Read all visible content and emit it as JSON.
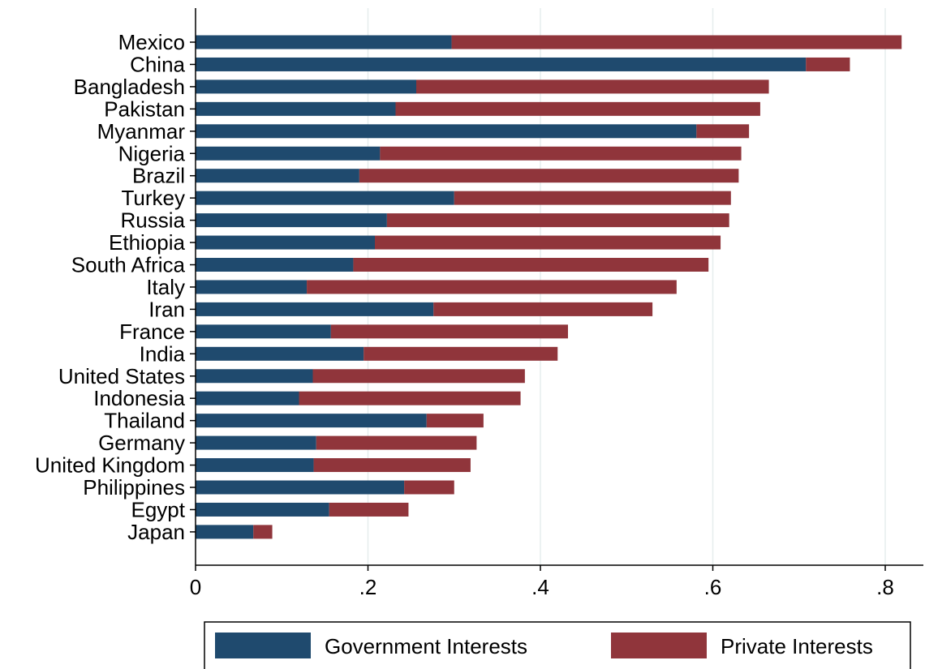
{
  "chart_data": {
    "type": "bar",
    "orientation": "horizontal",
    "stacked": true,
    "title": "",
    "xlabel": "",
    "ylabel": "",
    "xlim": [
      0,
      0.84
    ],
    "x_ticks": [
      0,
      0.2,
      0.4,
      0.6,
      0.8
    ],
    "x_tick_labels": [
      "0",
      ".2",
      ".4",
      ".6",
      ".8"
    ],
    "grid": "vertical",
    "legend_position": "bottom",
    "categories": [
      "Mexico",
      "China",
      "Bangladesh",
      "Pakistan",
      "Myanmar",
      "Nigeria",
      "Brazil",
      "Turkey",
      "Russia",
      "Ethiopia",
      "South Africa",
      "Italy",
      "Iran",
      "France",
      "India",
      "United States",
      "Indonesia",
      "Thailand",
      "Germany",
      "United Kingdom",
      "Philippines",
      "Egypt",
      "Japan"
    ],
    "series": [
      {
        "name": "Government Interests",
        "color": "#1f4a6e",
        "values": [
          0.297,
          0.708,
          0.256,
          0.232,
          0.581,
          0.214,
          0.19,
          0.3,
          0.222,
          0.208,
          0.183,
          0.129,
          0.276,
          0.157,
          0.195,
          0.136,
          0.12,
          0.268,
          0.14,
          0.137,
          0.242,
          0.155,
          0.067
        ]
      },
      {
        "name": "Private Interests",
        "color": "#90353b",
        "values": [
          0.522,
          0.051,
          0.409,
          0.423,
          0.061,
          0.419,
          0.44,
          0.321,
          0.397,
          0.401,
          0.412,
          0.429,
          0.254,
          0.275,
          0.225,
          0.246,
          0.257,
          0.066,
          0.186,
          0.182,
          0.058,
          0.092,
          0.022
        ]
      }
    ]
  }
}
